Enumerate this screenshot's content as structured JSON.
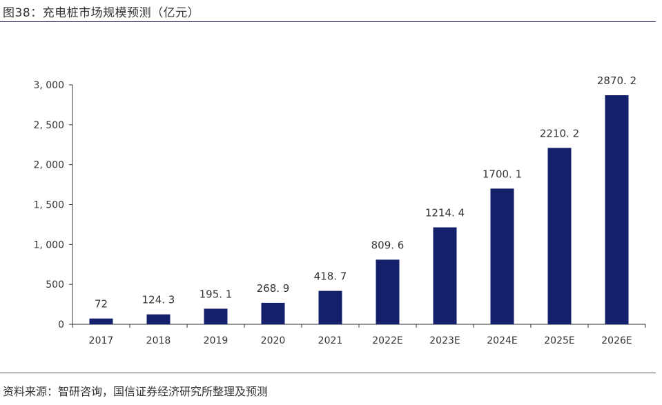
{
  "figure": {
    "title": "图38：充电桩市场规模预测（亿元）",
    "source": "资料来源：智研咨询，国信证券经济研究所整理及预测"
  },
  "colors": {
    "bar": "#15206b",
    "axis": "#333333",
    "rule": "#1f1f4d"
  },
  "chart_data": {
    "type": "bar",
    "title": "充电桩市场规模预测（亿元）",
    "xlabel": "",
    "ylabel": "",
    "categories": [
      "2017",
      "2018",
      "2019",
      "2020",
      "2021",
      "2022E",
      "2023E",
      "2024E",
      "2025E",
      "2026E"
    ],
    "values": [
      72,
      124.3,
      195.1,
      268.9,
      418.7,
      809.6,
      1214.4,
      1700.1,
      2210.2,
      2870.2
    ],
    "data_labels": [
      "72",
      "124. 3",
      "195. 1",
      "268. 9",
      "418. 7",
      "809. 6",
      "1214. 4",
      "1700. 1",
      "2210. 2",
      "2870. 2"
    ],
    "ylim": [
      0,
      3000
    ],
    "yticks": [
      0,
      500,
      1000,
      1500,
      2000,
      2500,
      3000
    ],
    "ytick_labels": [
      "0",
      "500",
      "1, 000",
      "1, 500",
      "2, 000",
      "2, 500",
      "3, 000"
    ],
    "grid": false,
    "legend": "none"
  }
}
